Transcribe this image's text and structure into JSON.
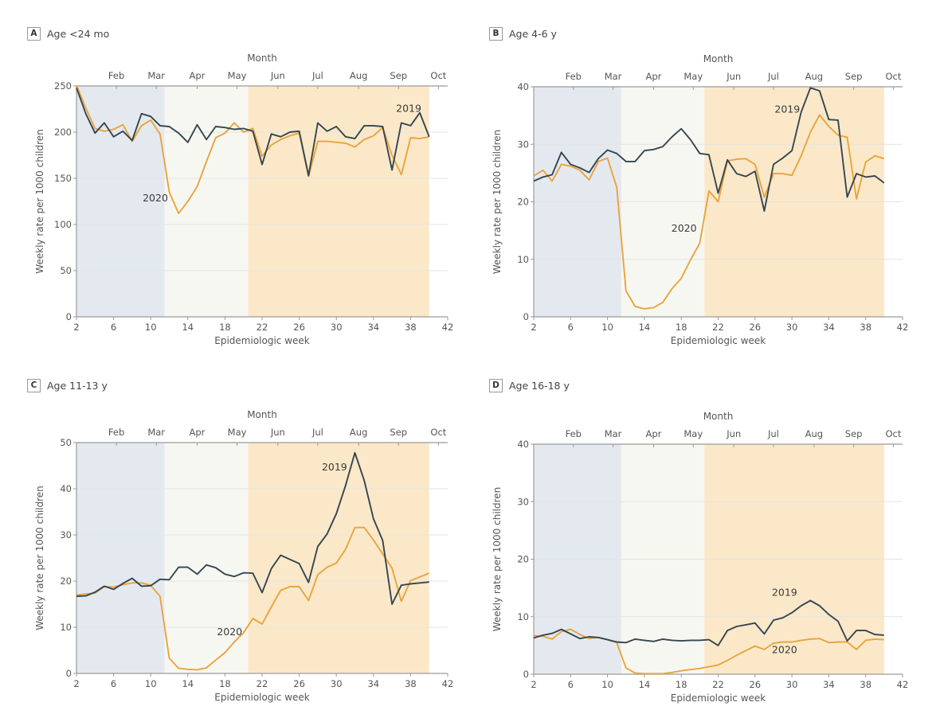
{
  "colors": {
    "series_2019": "#35464f",
    "series_2020": "#e9a43c",
    "band_pre": "#e4e9ef",
    "band_lockdown": "#f7f7f2",
    "band_reopen": "#fbe8c9",
    "grid": "#e3e3e3",
    "axis": "#9a9a9a"
  },
  "common": {
    "top_axis_label": "Month",
    "x_label": "Epidemiologic week",
    "y_label": "Weekly rate per 1000 children",
    "months": [
      {
        "label": "Feb",
        "week": 6.3
      },
      {
        "label": "Mar",
        "week": 10.6
      },
      {
        "label": "Apr",
        "week": 15.0
      },
      {
        "label": "May",
        "week": 19.3
      },
      {
        "label": "Jun",
        "week": 23.7
      },
      {
        "label": "Jul",
        "week": 28.0
      },
      {
        "label": "Aug",
        "week": 32.4
      },
      {
        "label": "Sep",
        "week": 36.7
      },
      {
        "label": "Oct",
        "week": 41.0
      }
    ],
    "x_ticks": [
      2,
      6,
      10,
      14,
      18,
      22,
      26,
      30,
      34,
      38,
      42
    ],
    "xlim": [
      2,
      42
    ],
    "bands": [
      {
        "name": "pre-pandemic",
        "from": 2,
        "to": 11.5
      },
      {
        "name": "lockdown",
        "from": 11.5,
        "to": 20.5
      },
      {
        "name": "reopening",
        "from": 20.5,
        "to": 40
      }
    ]
  },
  "chart_data": [
    {
      "type": "line",
      "letter": "A",
      "title": "Age <24 mo",
      "xlabel": "Epidemiologic week",
      "ylabel": "Weekly rate per 1000 children",
      "ylim": [
        0,
        250
      ],
      "y_ticks": [
        0,
        50,
        100,
        150,
        200,
        250
      ],
      "grid": true,
      "x": [
        2,
        3,
        4,
        5,
        6,
        7,
        8,
        9,
        10,
        11,
        12,
        13,
        14,
        15,
        16,
        17,
        18,
        19,
        20,
        21,
        22,
        23,
        24,
        25,
        26,
        27,
        28,
        29,
        30,
        31,
        32,
        33,
        34,
        35,
        36,
        37,
        38,
        39,
        40
      ],
      "series": [
        {
          "name": "2019",
          "label_at": {
            "week": 37.8,
            "value": 222
          },
          "values": [
            248,
            220,
            199,
            210,
            195,
            201,
            191,
            220,
            217,
            207,
            206,
            199,
            189,
            208,
            192,
            206,
            205,
            203,
            204,
            201,
            165,
            198,
            195,
            200,
            201,
            153,
            210,
            201,
            206,
            195,
            193,
            207,
            207,
            206,
            159,
            210,
            207,
            221,
            195
          ]
        },
        {
          "name": "2020",
          "label_at": {
            "week": 10.5,
            "value": 125
          },
          "values": [
            251,
            226,
            204,
            201,
            203,
            208,
            190,
            207,
            213,
            198,
            135,
            112,
            125,
            141,
            168,
            194,
            199,
            210,
            200,
            204,
            174,
            186,
            192,
            196,
            199,
            152,
            190,
            190,
            189,
            188,
            184,
            192,
            196,
            205,
            175,
            154,
            194,
            193,
            195
          ]
        }
      ]
    },
    {
      "type": "line",
      "letter": "B",
      "title": "Age 4-6 y",
      "xlabel": "Epidemiologic week",
      "ylabel": "Weekly rate per 1000 children",
      "ylim": [
        0,
        40
      ],
      "y_ticks": [
        0,
        10,
        20,
        30,
        40
      ],
      "grid": true,
      "x": [
        2,
        3,
        4,
        5,
        6,
        7,
        8,
        9,
        10,
        11,
        12,
        13,
        14,
        15,
        16,
        17,
        18,
        19,
        20,
        21,
        22,
        23,
        24,
        25,
        26,
        27,
        28,
        29,
        30,
        31,
        32,
        33,
        34,
        35,
        36,
        37,
        38,
        39,
        40
      ],
      "series": [
        {
          "name": "2019",
          "label_at": {
            "week": 29.5,
            "value": 35.5
          },
          "values": [
            23.6,
            24.3,
            24.7,
            28.6,
            26.5,
            25.9,
            25.1,
            27.5,
            29.0,
            28.4,
            27.0,
            27.0,
            28.9,
            29.1,
            29.6,
            31.3,
            32.7,
            30.8,
            28.4,
            28.2,
            21.5,
            27.3,
            24.9,
            24.4,
            25.3,
            18.4,
            26.5,
            27.6,
            28.9,
            35.6,
            39.8,
            39.3,
            34.3,
            34.2,
            20.8,
            24.9,
            24.3,
            24.5,
            23.3
          ]
        },
        {
          "name": "2020",
          "label_at": {
            "week": 18.3,
            "value": 14.8
          },
          "values": [
            24.5,
            25.5,
            23.6,
            26.5,
            26.2,
            25.5,
            23.8,
            27.0,
            27.6,
            22.5,
            4.5,
            1.8,
            1.4,
            1.6,
            2.5,
            4.9,
            6.7,
            9.9,
            12.8,
            21.9,
            20.0,
            27.1,
            27.4,
            27.5,
            26.5,
            20.8,
            24.9,
            24.9,
            24.6,
            28.0,
            32.1,
            35.1,
            33.1,
            31.6,
            31.2,
            20.5,
            26.9,
            28.0,
            27.5
          ]
        }
      ]
    },
    {
      "type": "line",
      "letter": "C",
      "title": "Age 11-13 y",
      "xlabel": "Epidemiologic week",
      "ylabel": "Weekly rate per 1000 children",
      "ylim": [
        0,
        50
      ],
      "y_ticks": [
        0,
        10,
        20,
        30,
        40,
        50
      ],
      "grid": true,
      "x": [
        2,
        3,
        4,
        5,
        6,
        7,
        8,
        9,
        10,
        11,
        12,
        13,
        14,
        15,
        16,
        17,
        18,
        19,
        20,
        21,
        22,
        23,
        24,
        25,
        26,
        27,
        28,
        29,
        30,
        31,
        32,
        33,
        34,
        35,
        36,
        37,
        38,
        39,
        40
      ],
      "series": [
        {
          "name": "2019",
          "label_at": {
            "week": 29.8,
            "value": 44
          },
          "values": [
            16.7,
            16.8,
            17.6,
            18.9,
            18.2,
            19.5,
            20.6,
            18.9,
            19.0,
            20.4,
            20.3,
            23.0,
            23.0,
            21.5,
            23.5,
            22.9,
            21.5,
            21.0,
            21.8,
            21.7,
            17.5,
            22.7,
            25.6,
            24.7,
            23.8,
            19.7,
            27.5,
            30.2,
            34.6,
            40.7,
            47.8,
            41.8,
            33.5,
            28.8,
            15.0,
            19.1,
            19.4,
            19.6,
            19.8
          ]
        },
        {
          "name": "2020",
          "label_at": {
            "week": 18.5,
            "value": 8.3
          },
          "values": [
            17.0,
            17.2,
            17.4,
            18.8,
            18.7,
            19.2,
            19.6,
            19.6,
            19.1,
            16.7,
            3.3,
            1.1,
            0.9,
            0.8,
            1.2,
            2.9,
            4.5,
            6.8,
            8.8,
            11.9,
            10.7,
            14.4,
            18.0,
            18.8,
            18.8,
            15.8,
            21.4,
            23.0,
            23.9,
            26.9,
            31.6,
            31.6,
            28.9,
            25.9,
            22.8,
            15.6,
            20.1,
            20.9,
            21.7
          ]
        }
      ]
    },
    {
      "type": "line",
      "letter": "D",
      "title": "Age 16-18 y",
      "xlabel": "Epidemiologic week",
      "ylabel": "Weekly rate per 1000 children",
      "ylim": [
        0,
        40
      ],
      "y_ticks": [
        0,
        10,
        20,
        30,
        40
      ],
      "grid": true,
      "x": [
        2,
        3,
        4,
        5,
        6,
        7,
        8,
        9,
        10,
        11,
        12,
        13,
        14,
        15,
        16,
        17,
        18,
        19,
        20,
        21,
        22,
        23,
        24,
        25,
        26,
        27,
        28,
        29,
        30,
        31,
        32,
        33,
        34,
        35,
        36,
        37,
        38,
        39,
        40
      ],
      "series": [
        {
          "name": "2019",
          "label_at": {
            "week": 29.2,
            "value": 13.6
          },
          "values": [
            6.3,
            6.8,
            7.1,
            7.8,
            7.0,
            6.2,
            6.5,
            6.4,
            6.0,
            5.6,
            5.5,
            6.1,
            5.9,
            5.7,
            6.1,
            5.9,
            5.8,
            5.9,
            5.9,
            6.0,
            5.0,
            7.6,
            8.3,
            8.6,
            8.9,
            7.0,
            9.4,
            9.8,
            10.7,
            11.9,
            12.8,
            11.9,
            10.4,
            9.2,
            5.8,
            7.6,
            7.6,
            6.9,
            6.8
          ]
        },
        {
          "name": "2020",
          "label_at": {
            "week": 29.2,
            "value": 3.7
          },
          "values": [
            6.7,
            6.6,
            6.1,
            7.4,
            7.8,
            6.9,
            6.2,
            6.4,
            6.0,
            5.5,
            1.1,
            0.2,
            0.1,
            0.1,
            0.1,
            0.3,
            0.6,
            0.8,
            1.0,
            1.3,
            1.6,
            2.4,
            3.3,
            4.1,
            4.9,
            4.3,
            5.4,
            5.6,
            5.6,
            5.9,
            6.1,
            6.2,
            5.5,
            5.6,
            5.6,
            4.3,
            5.9,
            6.1,
            6.0
          ]
        }
      ]
    }
  ]
}
